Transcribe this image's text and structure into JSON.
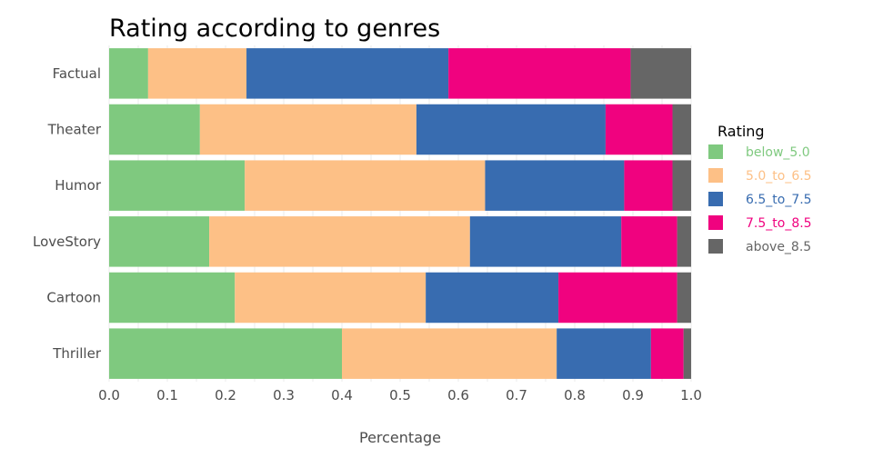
{
  "chart_data": {
    "type": "bar",
    "orientation": "horizontal",
    "stacked": true,
    "title": "Rating according to genres",
    "xlabel": "Percentage",
    "ylabel": "",
    "xlim": [
      0,
      1
    ],
    "xticks": [
      "0.0",
      "0.1",
      "0.2",
      "0.3",
      "0.4",
      "0.5",
      "0.6",
      "0.7",
      "0.8",
      "0.9",
      "1.0"
    ],
    "categories": [
      "Factual",
      "Theater",
      "Humor",
      "LoveStory",
      "Cartoon",
      "Thriller"
    ],
    "series": [
      {
        "name": "below_5.0",
        "color": "#7fc97f",
        "values": [
          0.067,
          0.156,
          0.233,
          0.172,
          0.216,
          0.4
        ]
      },
      {
        "name": "5.0_to_6.5",
        "color": "#fdc086",
        "values": [
          0.169,
          0.372,
          0.413,
          0.448,
          0.328,
          0.369
        ]
      },
      {
        "name": "6.5_to_7.5",
        "color": "#386cb0",
        "values": [
          0.347,
          0.325,
          0.239,
          0.26,
          0.228,
          0.162
        ]
      },
      {
        "name": "7.5_to_8.5",
        "color": "#f0027f",
        "values": [
          0.313,
          0.115,
          0.083,
          0.096,
          0.204,
          0.056
        ]
      },
      {
        "name": "above_8.5",
        "color": "#666666",
        "values": [
          0.104,
          0.032,
          0.032,
          0.024,
          0.024,
          0.013
        ]
      }
    ],
    "legend": {
      "title": "Rating",
      "position": "right"
    },
    "grid": true
  }
}
